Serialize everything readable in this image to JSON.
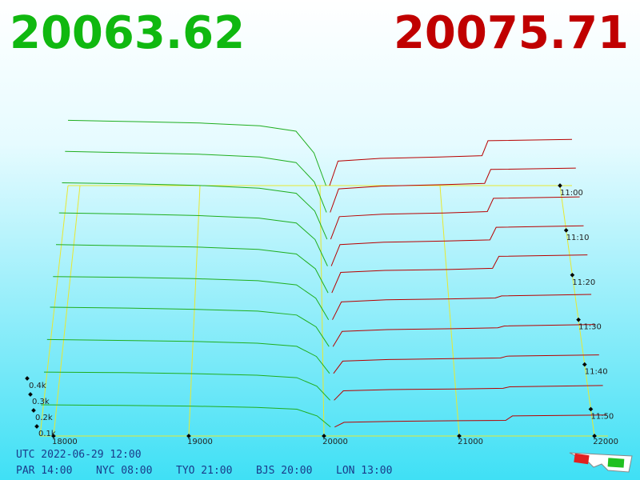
{
  "header": {
    "bid_price": "20063.62",
    "ask_price": "20075.71"
  },
  "chart_data": {
    "type": "depth3d",
    "xlim": [
      17900,
      22100
    ],
    "xticks": [
      18000,
      19000,
      20000,
      21000,
      22000
    ],
    "tlim": [
      660,
      716
    ],
    "tticks": [
      {
        "value": 660,
        "label": "11:00"
      },
      {
        "value": 670,
        "label": "11:10"
      },
      {
        "value": 680,
        "label": "11:20"
      },
      {
        "value": 690,
        "label": "11:30"
      },
      {
        "value": 700,
        "label": "11:40"
      },
      {
        "value": 710,
        "label": "11:50"
      }
    ],
    "dticks": [
      {
        "value": 100,
        "label": "0.1k"
      },
      {
        "value": 200,
        "label": "0.2k"
      },
      {
        "value": 300,
        "label": "0.3k"
      },
      {
        "value": 400,
        "label": "0.4k"
      }
    ],
    "grid": true,
    "bid_color": "#1fae1f",
    "ask_color": "#b80000",
    "bid_prices": [
      17900,
      18500,
      19000,
      19500,
      19800,
      19950,
      20050
    ],
    "ask_prices": [
      20080,
      20150,
      20500,
      21000,
      21350,
      21400,
      22100
    ],
    "slices": [
      {
        "t": 660,
        "bid": [
          480,
          470,
          460,
          440,
          400,
          240,
          0
        ],
        "ask": [
          0,
          180,
          200,
          210,
          220,
          330,
          340
        ]
      },
      {
        "t": 666,
        "bid": [
          440,
          430,
          420,
          400,
          360,
          220,
          0
        ],
        "ask": [
          0,
          170,
          190,
          200,
          210,
          310,
          320
        ]
      },
      {
        "t": 672,
        "bid": [
          400,
          392,
          382,
          362,
          326,
          200,
          0
        ],
        "ask": [
          0,
          160,
          178,
          186,
          196,
          290,
          300
        ]
      },
      {
        "t": 678,
        "bid": [
          370,
          362,
          352,
          334,
          300,
          185,
          0
        ],
        "ask": [
          0,
          150,
          166,
          174,
          182,
          270,
          280
        ]
      },
      {
        "t": 684,
        "bid": [
          330,
          322,
          314,
          298,
          266,
          165,
          0
        ],
        "ask": [
          0,
          140,
          154,
          160,
          168,
          250,
          260
        ]
      },
      {
        "t": 690,
        "bid": [
          290,
          284,
          276,
          262,
          234,
          145,
          0
        ],
        "ask": [
          0,
          120,
          134,
          140,
          146,
          160,
          170
        ]
      },
      {
        "t": 696,
        "bid": [
          260,
          254,
          246,
          234,
          208,
          130,
          0
        ],
        "ask": [
          0,
          100,
          112,
          118,
          124,
          136,
          146
        ]
      },
      {
        "t": 702,
        "bid": [
          220,
          214,
          208,
          196,
          176,
          110,
          0
        ],
        "ask": [
          0,
          80,
          90,
          96,
          100,
          112,
          120
        ]
      },
      {
        "t": 708,
        "bid": [
          180,
          176,
          170,
          160,
          144,
          90,
          0
        ],
        "ask": [
          0,
          60,
          68,
          72,
          76,
          86,
          94
        ]
      },
      {
        "t": 714,
        "bid": [
          140,
          136,
          132,
          124,
          112,
          70,
          0
        ],
        "ask": [
          0,
          30,
          36,
          40,
          42,
          70,
          76
        ]
      }
    ]
  },
  "footer": {
    "utc": "UTC 2022-06-29 12:00",
    "zones": [
      "PAR 14:00",
      "NYC 08:00",
      "TYO 21:00",
      "BJS 20:00",
      "LON 13:00"
    ]
  }
}
